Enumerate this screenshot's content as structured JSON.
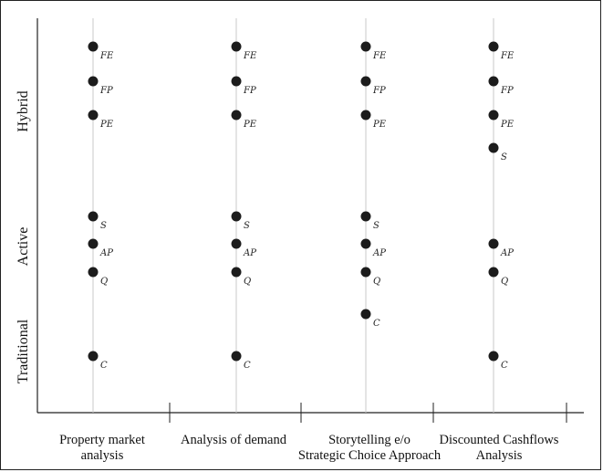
{
  "chart_data": {
    "type": "scatter",
    "y_groups": [
      "Hybrid",
      "Active",
      "Traditional"
    ],
    "categories": [
      {
        "name": "cat-property-market",
        "lines": [
          "Property market",
          "analysis"
        ]
      },
      {
        "name": "cat-analysis-demand",
        "lines": [
          "Analysis of demand"
        ]
      },
      {
        "name": "cat-storytelling",
        "lines": [
          "Storytelling e/o",
          "Strategic Choice Approach"
        ]
      },
      {
        "name": "cat-dcf",
        "lines": [
          "Discounted Cashflows",
          "Analysis"
        ]
      }
    ],
    "levels": [
      "FE",
      "FP",
      "PE",
      "S",
      "AP",
      "Q",
      "C"
    ],
    "points": [
      [
        "FE",
        "FP",
        "PE",
        "S",
        "AP",
        "Q",
        "C"
      ],
      [
        "FE",
        "FP",
        "PE",
        "S",
        "AP",
        "Q",
        "C"
      ],
      [
        "FE",
        "FP",
        "PE",
        "S",
        "AP",
        "Q",
        "C"
      ],
      [
        "FE",
        "FP",
        "PE",
        "S",
        "AP",
        "Q",
        "C"
      ]
    ],
    "grid": false,
    "legend": "none"
  }
}
